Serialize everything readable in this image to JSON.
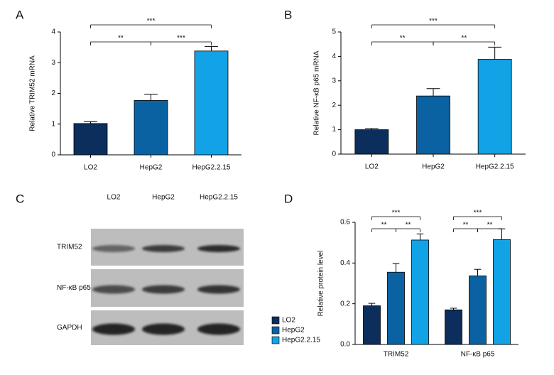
{
  "chart_data": [
    {
      "type": "bar",
      "panel": "A",
      "ylabel": "Relative TRIM52 mRNA",
      "categories": [
        "LO2",
        "HepG2",
        "HepG2.2.15"
      ],
      "values": [
        1.02,
        1.77,
        3.38
      ],
      "errors": [
        0.06,
        0.2,
        0.15
      ],
      "colors": [
        "#0b2e5c",
        "#0b62a3",
        "#12a2e6"
      ],
      "ylim": [
        0,
        4
      ],
      "yticks": [
        0,
        1,
        2,
        3,
        4
      ],
      "comparisons": [
        {
          "pair": [
            "LO2",
            "HepG2"
          ],
          "label": "**"
        },
        {
          "pair": [
            "HepG2",
            "HepG2.2.15"
          ],
          "label": "***"
        },
        {
          "pair": [
            "LO2",
            "HepG2.2.15"
          ],
          "label": "***"
        }
      ]
    },
    {
      "type": "bar",
      "panel": "B",
      "ylabel": "Relative NF-κB p65 mRNA",
      "categories": [
        "LO2",
        "HepG2",
        "HepG2.2.15"
      ],
      "values": [
        1.0,
        2.38,
        3.88
      ],
      "errors": [
        0.05,
        0.3,
        0.5
      ],
      "colors": [
        "#0b2e5c",
        "#0b62a3",
        "#12a2e6"
      ],
      "ylim": [
        0,
        5
      ],
      "yticks": [
        0,
        1,
        2,
        3,
        4,
        5
      ],
      "comparisons": [
        {
          "pair": [
            "LO2",
            "HepG2"
          ],
          "label": "**"
        },
        {
          "pair": [
            "HepG2",
            "HepG2.2.15"
          ],
          "label": "**"
        },
        {
          "pair": [
            "LO2",
            "HepG2.2.15"
          ],
          "label": "***"
        }
      ]
    },
    {
      "type": "grouped_bar",
      "panel": "D",
      "ylabel": "Relative protein level",
      "categories": [
        "TRIM52",
        "NF-κB p65"
      ],
      "series": [
        {
          "name": "LO2",
          "color": "#0b2e5c",
          "values": [
            0.19,
            0.17
          ],
          "errors": [
            0.012,
            0.008
          ]
        },
        {
          "name": "HepG2",
          "color": "#0b62a3",
          "values": [
            0.355,
            0.337
          ],
          "errors": [
            0.042,
            0.032
          ]
        },
        {
          "name": "HepG2.2.15",
          "color": "#12a2e6",
          "values": [
            0.513,
            0.515
          ],
          "errors": [
            0.03,
            0.053
          ]
        }
      ],
      "ylim": [
        0,
        0.6
      ],
      "yticks": [
        {
          "value": 0,
          "label": "0.0"
        },
        0.2,
        0.4,
        0.6
      ],
      "legend": "left",
      "comparisons": [
        {
          "category": "TRIM52",
          "pair": [
            "LO2",
            "HepG2"
          ],
          "label": "**"
        },
        {
          "category": "TRIM52",
          "pair": [
            "HepG2",
            "HepG2.2.15"
          ],
          "label": "**"
        },
        {
          "category": "TRIM52",
          "pair": [
            "LO2",
            "HepG2.2.15"
          ],
          "label": "***"
        },
        {
          "category": "NF-κB p65",
          "pair": [
            "LO2",
            "HepG2"
          ],
          "label": "**"
        },
        {
          "category": "NF-κB p65",
          "pair": [
            "HepG2",
            "HepG2.2.15"
          ],
          "label": "**"
        },
        {
          "category": "NF-κB p65",
          "pair": [
            "LO2",
            "HepG2.2.15"
          ],
          "label": "***"
        }
      ]
    }
  ],
  "blot": {
    "panel": "C",
    "lanes": [
      "LO2",
      "HepG2",
      "HepG2.2.15"
    ],
    "rows": [
      "TRIM52",
      "NF-κB p65",
      "GAPDH"
    ]
  }
}
